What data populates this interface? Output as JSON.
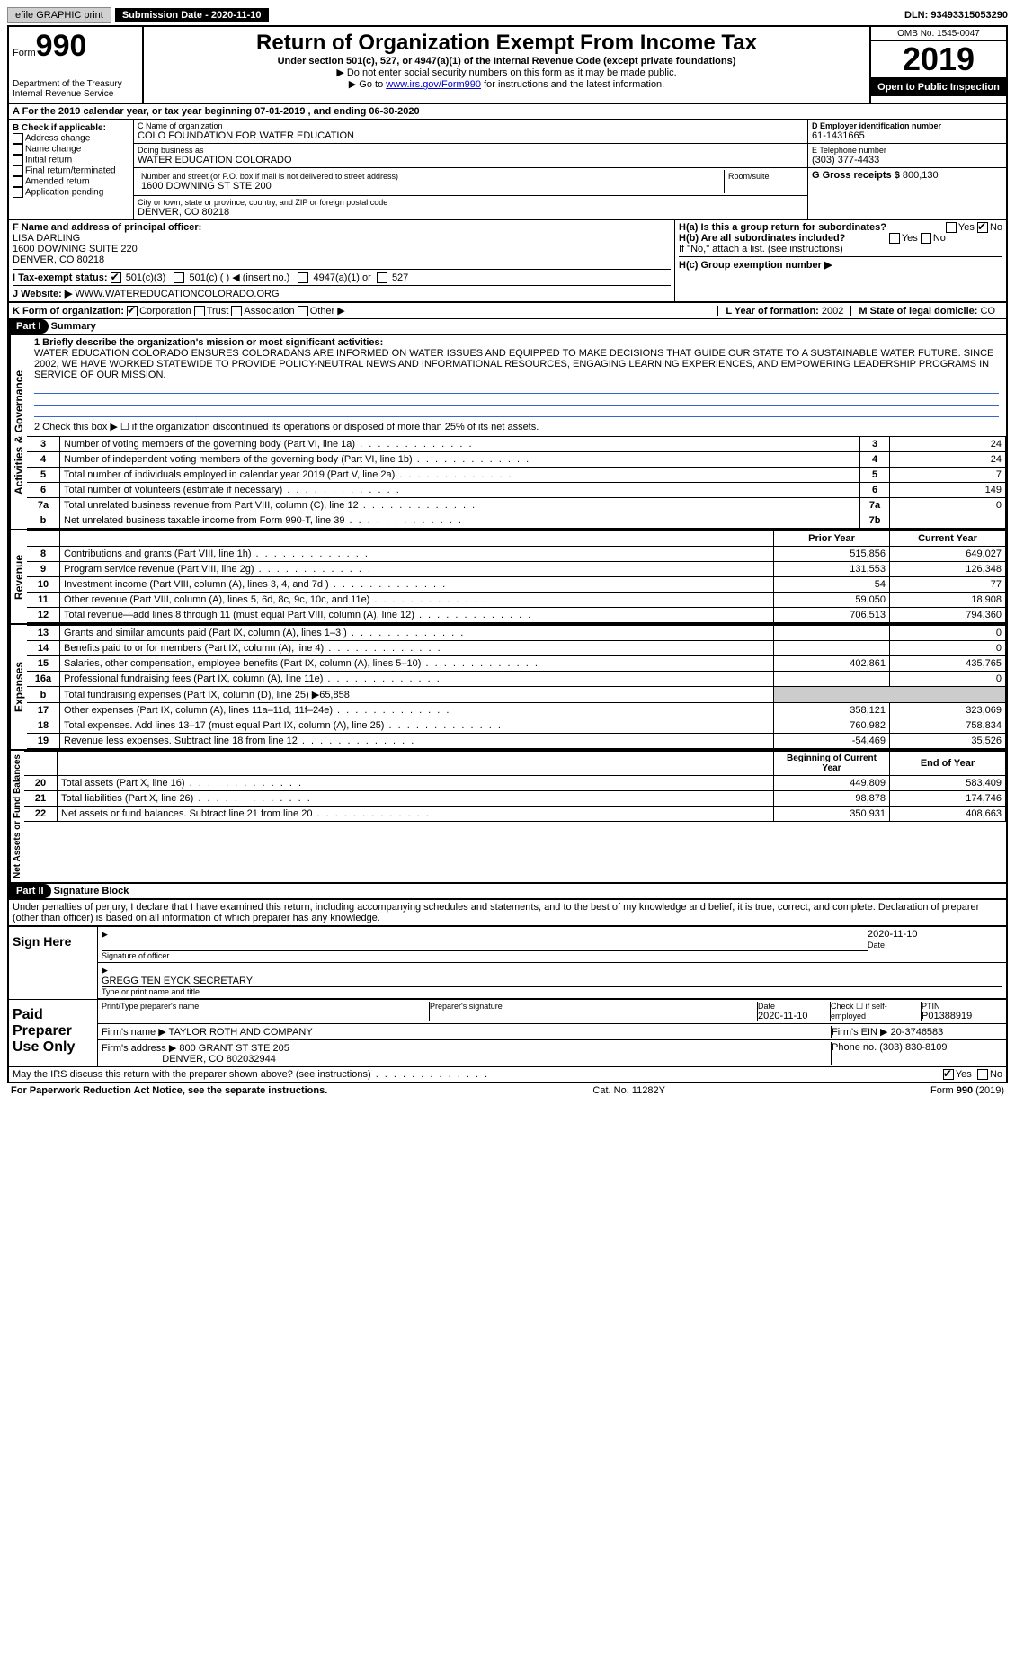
{
  "topbar": {
    "efile": "efile GRAPHIC print",
    "submission": "Submission Date - 2020-11-10",
    "dln": "DLN: 93493315053290"
  },
  "header": {
    "form_word": "Form",
    "form_no": "990",
    "dept1": "Department of the Treasury",
    "dept2": "Internal Revenue Service",
    "title": "Return of Organization Exempt From Income Tax",
    "subtitle": "Under section 501(c), 527, or 4947(a)(1) of the Internal Revenue Code (except private foundations)",
    "note1": "▶ Do not enter social security numbers on this form as it may be made public.",
    "note2_pre": "▶ Go to ",
    "note2_link": "www.irs.gov/Form990",
    "note2_post": " for instructions and the latest information.",
    "omb": "OMB No. 1545-0047",
    "year": "2019",
    "open": "Open to Public Inspection"
  },
  "period": "A For the 2019 calendar year, or tax year beginning 07-01-2019   , and ending 06-30-2020",
  "box_b": {
    "title": "B Check if applicable:",
    "opts": [
      "Address change",
      "Name change",
      "Initial return",
      "Final return/terminated",
      "Amended return",
      "Application pending"
    ]
  },
  "box_c": {
    "name_lbl": "C Name of organization",
    "name": "COLO FOUNDATION FOR WATER EDUCATION",
    "dba_lbl": "Doing business as",
    "dba": "WATER EDUCATION COLORADO",
    "street_lbl": "Number and street (or P.O. box if mail is not delivered to street address)",
    "street": "1600 DOWNING ST STE 200",
    "room_lbl": "Room/suite",
    "city_lbl": "City or town, state or province, country, and ZIP or foreign postal code",
    "city": "DENVER, CO  80218"
  },
  "box_d": {
    "ein_lbl": "D Employer identification number",
    "ein": "61-1431665",
    "tel_lbl": "E Telephone number",
    "tel": "(303) 377-4433",
    "gross_lbl": "G Gross receipts $",
    "gross": "800,130"
  },
  "box_f": {
    "lbl": "F Name and address of principal officer:",
    "name": "LISA DARLING",
    "addr1": "1600 DOWNING SUITE 220",
    "addr2": "DENVER, CO  80218"
  },
  "box_h": {
    "ha": "H(a)  Is this a group return for subordinates?",
    "hb": "H(b)  Are all subordinates included?",
    "hb2": "If \"No,\" attach a list. (see instructions)",
    "hc": "H(c)  Group exemption number ▶",
    "yes": "Yes",
    "no": "No"
  },
  "row_i": {
    "lbl": "I   Tax-exempt status:",
    "o1": "501(c)(3)",
    "o2": "501(c) (   ) ◀ (insert no.)",
    "o3": "4947(a)(1) or",
    "o4": "527"
  },
  "row_j": {
    "lbl": "J   Website: ▶",
    "val": "WWW.WATEREDUCATIONCOLORADO.ORG"
  },
  "row_k": {
    "lbl": "K Form of organization:",
    "o1": "Corporation",
    "o2": "Trust",
    "o3": "Association",
    "o4": "Other ▶",
    "l_lbl": "L Year of formation:",
    "l_val": "2002",
    "m_lbl": "M State of legal domicile:",
    "m_val": "CO"
  },
  "part1": {
    "hdr": "Part I",
    "title": "Summary",
    "side_gov": "Activities & Governance",
    "side_rev": "Revenue",
    "side_exp": "Expenses",
    "side_net": "Net Assets or Fund Balances",
    "l1_lbl": "1  Briefly describe the organization's mission or most significant activities:",
    "l1_txt": "WATER EDUCATION COLORADO ENSURES COLORADANS ARE INFORMED ON WATER ISSUES AND EQUIPPED TO MAKE DECISIONS THAT GUIDE OUR STATE TO A SUSTAINABLE WATER FUTURE. SINCE 2002, WE HAVE WORKED STATEWIDE TO PROVIDE POLICY-NEUTRAL NEWS AND INFORMATIONAL RESOURCES, ENGAGING LEARNING EXPERIENCES, AND EMPOWERING LEADERSHIP PROGRAMS IN SERVICE OF OUR MISSION.",
    "l2": "2   Check this box ▶ ☐  if the organization discontinued its operations or disposed of more than 25% of its net assets.",
    "rows_gov": [
      {
        "n": "3",
        "d": "Number of voting members of the governing body (Part VI, line 1a)",
        "c": "3",
        "v": "24"
      },
      {
        "n": "4",
        "d": "Number of independent voting members of the governing body (Part VI, line 1b)",
        "c": "4",
        "v": "24"
      },
      {
        "n": "5",
        "d": "Total number of individuals employed in calendar year 2019 (Part V, line 2a)",
        "c": "5",
        "v": "7"
      },
      {
        "n": "6",
        "d": "Total number of volunteers (estimate if necessary)",
        "c": "6",
        "v": "149"
      },
      {
        "n": "7a",
        "d": "Total unrelated business revenue from Part VIII, column (C), line 12",
        "c": "7a",
        "v": "0"
      },
      {
        "n": "b",
        "d": "Net unrelated business taxable income from Form 990-T, line 39",
        "c": "7b",
        "v": ""
      }
    ],
    "col_prior": "Prior Year",
    "col_curr": "Current Year",
    "rows_rev": [
      {
        "n": "8",
        "d": "Contributions and grants (Part VIII, line 1h)",
        "p": "515,856",
        "c": "649,027"
      },
      {
        "n": "9",
        "d": "Program service revenue (Part VIII, line 2g)",
        "p": "131,553",
        "c": "126,348"
      },
      {
        "n": "10",
        "d": "Investment income (Part VIII, column (A), lines 3, 4, and 7d )",
        "p": "54",
        "c": "77"
      },
      {
        "n": "11",
        "d": "Other revenue (Part VIII, column (A), lines 5, 6d, 8c, 9c, 10c, and 11e)",
        "p": "59,050",
        "c": "18,908"
      },
      {
        "n": "12",
        "d": "Total revenue—add lines 8 through 11 (must equal Part VIII, column (A), line 12)",
        "p": "706,513",
        "c": "794,360"
      }
    ],
    "rows_exp": [
      {
        "n": "13",
        "d": "Grants and similar amounts paid (Part IX, column (A), lines 1–3 )",
        "p": "",
        "c": "0"
      },
      {
        "n": "14",
        "d": "Benefits paid to or for members (Part IX, column (A), line 4)",
        "p": "",
        "c": "0"
      },
      {
        "n": "15",
        "d": "Salaries, other compensation, employee benefits (Part IX, column (A), lines 5–10)",
        "p": "402,861",
        "c": "435,765"
      },
      {
        "n": "16a",
        "d": "Professional fundraising fees (Part IX, column (A), line 11e)",
        "p": "",
        "c": "0"
      },
      {
        "n": "b",
        "d": "Total fundraising expenses (Part IX, column (D), line 25) ▶65,858",
        "p": "—",
        "c": "—"
      },
      {
        "n": "17",
        "d": "Other expenses (Part IX, column (A), lines 11a–11d, 11f–24e)",
        "p": "358,121",
        "c": "323,069"
      },
      {
        "n": "18",
        "d": "Total expenses. Add lines 13–17 (must equal Part IX, column (A), line 25)",
        "p": "760,982",
        "c": "758,834"
      },
      {
        "n": "19",
        "d": "Revenue less expenses. Subtract line 18 from line 12",
        "p": "-54,469",
        "c": "35,526"
      }
    ],
    "col_beg": "Beginning of Current Year",
    "col_end": "End of Year",
    "rows_net": [
      {
        "n": "20",
        "d": "Total assets (Part X, line 16)",
        "p": "449,809",
        "c": "583,409"
      },
      {
        "n": "21",
        "d": "Total liabilities (Part X, line 26)",
        "p": "98,878",
        "c": "174,746"
      },
      {
        "n": "22",
        "d": "Net assets or fund balances. Subtract line 21 from line 20",
        "p": "350,931",
        "c": "408,663"
      }
    ]
  },
  "part2": {
    "hdr": "Part II",
    "title": "Signature Block",
    "decl": "Under penalties of perjury, I declare that I have examined this return, including accompanying schedules and statements, and to the best of my knowledge and belief, it is true, correct, and complete. Declaration of preparer (other than officer) is based on all information of which preparer has any knowledge.",
    "sign_here": "Sign Here",
    "sig_officer": "Signature of officer",
    "sig_date": "2020-11-10",
    "date_lbl": "Date",
    "officer_name": "GREGG TEN EYCK SECRETARY",
    "type_name": "Type or print name and title",
    "paid": "Paid Preparer Use Only",
    "prep_name_lbl": "Print/Type preparer's name",
    "prep_sig_lbl": "Preparer's signature",
    "prep_date_lbl": "Date",
    "prep_date": "2020-11-10",
    "check_self": "Check ☐ if self-employed",
    "ptin_lbl": "PTIN",
    "ptin": "P01388919",
    "firm_name_lbl": "Firm's name   ▶",
    "firm_name": "TAYLOR ROTH AND COMPANY",
    "firm_ein_lbl": "Firm's EIN ▶",
    "firm_ein": "20-3746583",
    "firm_addr_lbl": "Firm's address ▶",
    "firm_addr1": "800 GRANT ST STE 205",
    "firm_addr2": "DENVER, CO  802032944",
    "firm_tel_lbl": "Phone no.",
    "firm_tel": "(303) 830-8109",
    "discuss": "May the IRS discuss this return with the preparer shown above? (see instructions)",
    "yes": "Yes",
    "no": "No"
  },
  "footer": {
    "left": "For Paperwork Reduction Act Notice, see the separate instructions.",
    "mid": "Cat. No. 11282Y",
    "right": "Form 990 (2019)"
  }
}
